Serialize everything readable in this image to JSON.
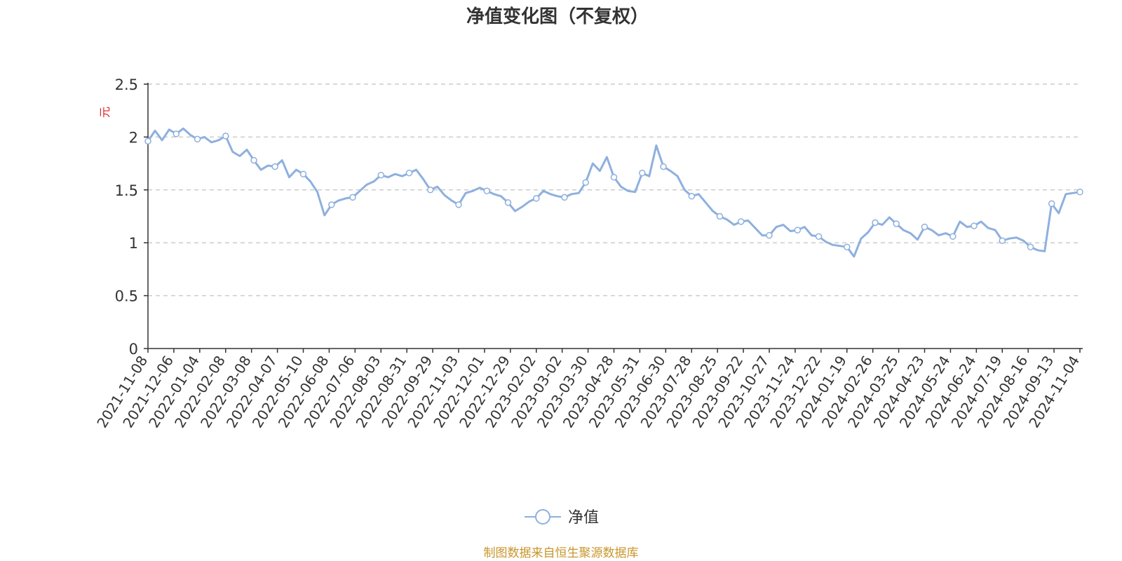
{
  "chart_data": {
    "type": "line",
    "title": "净值变化图（不复权）",
    "ylabel": "元",
    "ylim": [
      0,
      2.5
    ],
    "yticks": [
      "0",
      "0.5",
      "1",
      "1.5",
      "2",
      "2.5"
    ],
    "grid": true,
    "legend_position": "bottom-center",
    "x_tick_labels": [
      "2021-11-08",
      "2021-12-06",
      "2022-01-04",
      "2022-02-08",
      "2022-03-08",
      "2022-04-07",
      "2022-05-10",
      "2022-06-08",
      "2022-07-06",
      "2022-08-03",
      "2022-08-31",
      "2022-09-29",
      "2022-11-03",
      "2022-12-01",
      "2022-12-29",
      "2023-02-02",
      "2023-03-02",
      "2023-03-30",
      "2023-04-28",
      "2023-05-31",
      "2023-06-30",
      "2023-07-28",
      "2023-08-25",
      "2023-09-22",
      "2023-10-27",
      "2023-11-24",
      "2023-12-22",
      "2024-01-19",
      "2024-02-26",
      "2024-03-25",
      "2024-04-23",
      "2024-05-24",
      "2024-06-24",
      "2024-07-19",
      "2024-08-16",
      "2024-09-13",
      "2024-11-04"
    ],
    "series": [
      {
        "name": "净值",
        "color": "#8eb0de",
        "values": [
          1.96,
          2.06,
          1.97,
          2.07,
          2.03,
          2.08,
          2.02,
          1.98,
          2.0,
          1.95,
          1.97,
          2.01,
          1.86,
          1.82,
          1.88,
          1.78,
          1.69,
          1.73,
          1.72,
          1.78,
          1.62,
          1.69,
          1.65,
          1.58,
          1.48,
          1.26,
          1.36,
          1.4,
          1.42,
          1.43,
          1.49,
          1.55,
          1.58,
          1.64,
          1.62,
          1.65,
          1.63,
          1.66,
          1.69,
          1.6,
          1.5,
          1.53,
          1.45,
          1.4,
          1.36,
          1.47,
          1.49,
          1.52,
          1.49,
          1.46,
          1.44,
          1.38,
          1.3,
          1.34,
          1.39,
          1.42,
          1.49,
          1.46,
          1.44,
          1.43,
          1.46,
          1.47,
          1.57,
          1.75,
          1.68,
          1.81,
          1.62,
          1.53,
          1.49,
          1.48,
          1.66,
          1.63,
          1.92,
          1.72,
          1.68,
          1.63,
          1.5,
          1.44,
          1.46,
          1.38,
          1.3,
          1.25,
          1.22,
          1.17,
          1.2,
          1.21,
          1.14,
          1.07,
          1.07,
          1.15,
          1.17,
          1.11,
          1.12,
          1.15,
          1.07,
          1.06,
          1.01,
          0.98,
          0.97,
          0.96,
          0.87,
          1.04,
          1.1,
          1.19,
          1.17,
          1.24,
          1.18,
          1.12,
          1.09,
          1.03,
          1.15,
          1.12,
          1.07,
          1.09,
          1.06,
          1.2,
          1.15,
          1.16,
          1.2,
          1.14,
          1.12,
          1.02,
          1.04,
          1.05,
          1.02,
          0.96,
          0.93,
          0.92,
          1.37,
          1.28,
          1.46,
          1.47,
          1.48
        ]
      }
    ]
  },
  "legend": {
    "label": "净值"
  },
  "source": {
    "text": "制图数据来自恒生聚源数据库",
    "color": "#c8962b"
  },
  "colors": {
    "axis": "#333333",
    "grid": "#cccccc",
    "unit": "#e02020",
    "line": "#8eb0de"
  }
}
